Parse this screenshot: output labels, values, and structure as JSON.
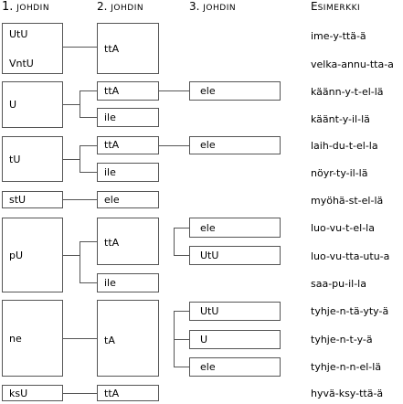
{
  "headers": {
    "col1": {
      "num": "1.",
      "word": "JOHDIN"
    },
    "col2": {
      "num": "2.",
      "word": "JOHDIN"
    },
    "col3": {
      "num": "3.",
      "word": "JOHDIN"
    },
    "col4": {
      "first": "E",
      "rest": "SIMERKKI"
    }
  },
  "col1": [
    "UtU",
    "VntU",
    "U",
    "tU",
    "stU",
    "pU",
    "ne",
    "ksU"
  ],
  "col2": [
    "ttA",
    "ttA",
    "ile",
    "ttA",
    "ile",
    "ele",
    "ttA",
    "ile",
    "tA",
    "ttA"
  ],
  "col3": [
    "ele",
    "ele",
    "ele",
    "UtU",
    "UtU",
    "U",
    "ele"
  ],
  "examples": [
    "ime-y-ttä-ä",
    "velka-annu-tta-a",
    "käänn-y-t-el-lä",
    "käänt-y-il-lä",
    "laih-du-t-el-la",
    "nöyr-ty-il-lä",
    "myöhä-st-el-lä",
    "luo-vu-t-el-la",
    "luo-vu-tta-utu-a",
    "saa-pu-il-la",
    "tyhje-n-tä-yty-ä",
    "tyhje-n-t-y-ä",
    "tyhje-n-n-el-lä",
    "hyvä-ksy-ttä-ä"
  ]
}
